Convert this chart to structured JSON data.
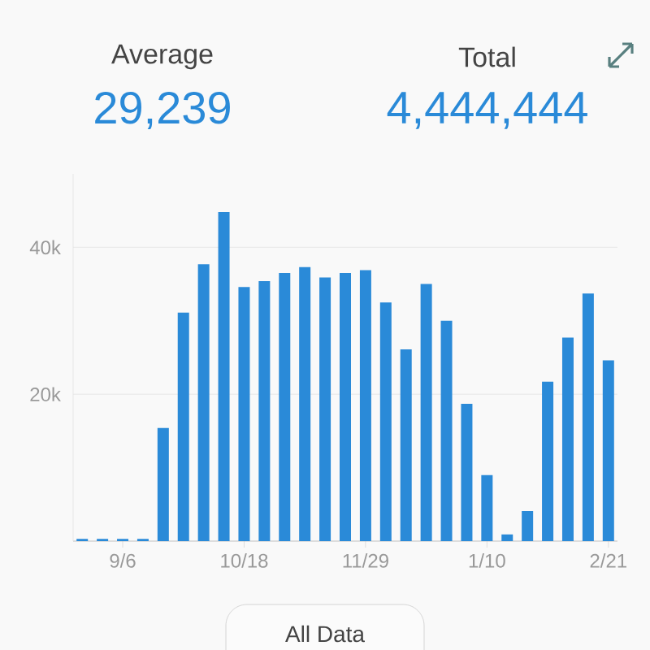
{
  "chart_data": {
    "type": "bar",
    "categories": [
      null,
      null,
      "9/6",
      null,
      null,
      null,
      null,
      null,
      "10/18",
      null,
      null,
      null,
      null,
      null,
      "11/29",
      null,
      null,
      null,
      null,
      null,
      "1/10",
      null,
      null,
      null,
      null,
      null,
      "2/21"
    ],
    "values": [
      300,
      300,
      300,
      300,
      15400,
      31100,
      37700,
      44800,
      34600,
      35400,
      36500,
      37300,
      35900,
      36500,
      36900,
      32500,
      26100,
      35000,
      30000,
      18700,
      9000,
      900,
      4100,
      21700,
      27700,
      33700,
      24600
    ],
    "color": "#2a8ad8",
    "ylim": [
      0,
      50000
    ],
    "yticks": [
      {
        "value": 20000,
        "label": "20k"
      },
      {
        "value": 40000,
        "label": "40k"
      }
    ],
    "grid": "y",
    "annotations": [
      "Average",
      "29,239",
      "Total",
      "4,444,444",
      "All Data"
    ]
  }
}
